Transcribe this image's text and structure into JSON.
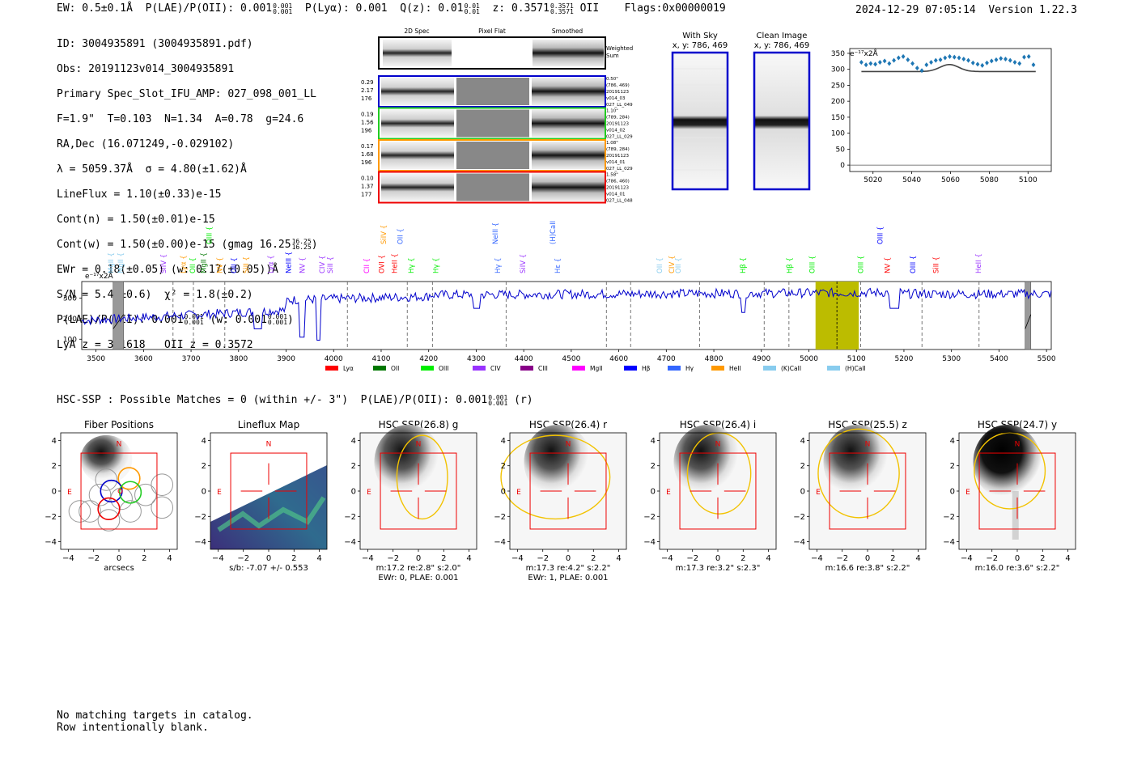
{
  "header": {
    "ew_label": "EW: 0.5±0.1Å",
    "plae_label": "P(LAE)/P(OII): 0.001",
    "plae_hi": "0.001",
    "plae_lo": "0.001",
    "plya_label": "P(Lyα): 0.001",
    "qz_label": "Q(z): 0.01",
    "qz_hi": "0.01",
    "qz_lo": "0.01",
    "z_label": "z: 0.3571",
    "z_hi": "0.3571",
    "z_lo": "0.3571",
    "z_line": "OII",
    "flags": "Flags:0x00000019",
    "timestamp": "2024-12-29 07:05:14  Version 1.22.3"
  },
  "info": {
    "id": "ID: 3004935891 (3004935891.pdf)",
    "obs": "Obs: 20191123v014_3004935891",
    "primary": "Primary Spec_Slot_IFU_AMP: 027_098_001_LL",
    "fparams": "F=1.9\"  T=0.103  N=1.34  A=0.78  g=24.6",
    "radec": "RA,Dec (16.071249,-0.029102)",
    "lambda": "λ = 5059.37Å  σ = 4.80(±1.62)Å",
    "lineflux": "LineFlux = 1.10(±0.33)e-15",
    "contn": "Cont(n) = 1.50(±0.01)e-15",
    "contw": "Cont(w) = 1.50(±0.00)e-15 (gmag 16.25",
    "contw_hi": "16.25",
    "contw_lo": "16.25",
    "ewr": "EWr = 0.18(±0.05) (w: 0.17(±0.05))Å",
    "sn": "S/N = 5.4(±0.6)  χ² = 1.8(±0.2)",
    "plae": "P(LAE)/P(OII): 0.001",
    "plae_hi": "0.001",
    "plae_lo": "0.001",
    "plae_w": "(w: 0.001",
    "plae_w_hi": "0.001",
    "plae_w_lo": "0.001",
    "lya_z": "LyA z = 3.1618   OII z = 0.3572"
  },
  "cutouts": {
    "col_titles": [
      "2D Spec",
      "Pixel Flat",
      "Smoothed"
    ],
    "weighted_sum_label": "Weighted\nSum",
    "rows": [
      {
        "color": "#0000cc",
        "left": [
          "0.29",
          "2.17",
          "176"
        ],
        "right": [
          "0.50\"",
          "(786, 469)",
          "20191123",
          "v014_03",
          "027_LL_049"
        ]
      },
      {
        "color": "#22cc22",
        "left": [
          "0.19",
          "1.56",
          "196"
        ],
        "right": [
          "1.10\"",
          "(789, 284)",
          "20191123",
          "v014_02",
          "027_LL_029"
        ]
      },
      {
        "color": "#ff9900",
        "left": [
          "0.17",
          "1.68",
          "196"
        ],
        "right": [
          "1.08\"",
          "(789, 284)",
          "20191123",
          "v014_01",
          "027_LL_029"
        ]
      },
      {
        "color": "#ee0000",
        "left": [
          "0.10",
          "1.37",
          "177"
        ],
        "right": [
          "1.58\"",
          "(786, 460)",
          "20191123",
          "v014_01",
          "027_LL_048"
        ]
      }
    ]
  },
  "sky_panels": {
    "with_sky": "With Sky",
    "with_sky_xy": "x, y: 786, 469",
    "clean": "Clean Image",
    "clean_xy": "x, y: 786, 469"
  },
  "zoom_chart": {
    "unit_label": "e⁻¹⁷x2Å",
    "yticks": [
      "350",
      "300",
      "250",
      "200",
      "150",
      "100",
      "50",
      "0"
    ],
    "xticks": [
      "5020",
      "5040",
      "5060",
      "5080",
      "5100"
    ]
  },
  "spectrum": {
    "unit_label": "e⁻¹⁷x2Å",
    "yticks": [
      "300",
      "200",
      "100"
    ],
    "xticks": [
      "3500",
      "3600",
      "3700",
      "3800",
      "3900",
      "4000",
      "4100",
      "4200",
      "4300",
      "4400",
      "4500",
      "4600",
      "4700",
      "4800",
      "4900",
      "5000",
      "5100",
      "5200",
      "5300",
      "5400",
      "5500"
    ],
    "legend": [
      {
        "label": "Lyα",
        "color": "#ff0000"
      },
      {
        "label": "OII",
        "color": "#007700"
      },
      {
        "label": "OIII",
        "color": "#00ee00"
      },
      {
        "label": "CIV",
        "color": "#9933ff"
      },
      {
        "label": "CIII",
        "color": "#880088"
      },
      {
        "label": "MgII",
        "color": "#ff00ff"
      },
      {
        "label": "Hβ",
        "color": "#0000ff"
      },
      {
        "label": "Hγ",
        "color": "#3366ff"
      },
      {
        "label": "HeII",
        "color": "#ff9900"
      },
      {
        "label": "(K)CaII",
        "color": "#88ccee"
      },
      {
        "label": "(H)CaII",
        "color": "#88ccee"
      }
    ],
    "line_labels": [
      {
        "x": 3531,
        "text": "MgII",
        "color": "#88ccee",
        "row": 1
      },
      {
        "x": 3552,
        "text": "MgII",
        "color": "#88ccee",
        "row": 1
      },
      {
        "x": 3642,
        "text": "SiIV",
        "color": "#9933ff",
        "row": 1
      },
      {
        "x": 3684,
        "text": "Lyα",
        "color": "#ff9900",
        "row": 1
      },
      {
        "x": 3703,
        "text": "OII",
        "color": "#00ee00",
        "row": 1
      },
      {
        "x": 3726,
        "text": "MgII",
        "color": "#007700",
        "row": 1
      },
      {
        "x": 3738,
        "text": "OIII",
        "color": "#00ee00",
        "row": 0
      },
      {
        "x": 3760,
        "text": "NV",
        "color": "#ff9900",
        "row": 1
      },
      {
        "x": 3790,
        "text": "OII",
        "color": "#0000ff",
        "row": 1
      },
      {
        "x": 3816,
        "text": "SiII",
        "color": "#ff9900",
        "row": 1
      },
      {
        "x": 3868,
        "text": "Lyα",
        "color": "#9933ff",
        "row": 1
      },
      {
        "x": 3905,
        "text": "NeIII",
        "color": "#0000ff",
        "row": 1
      },
      {
        "x": 3934,
        "text": "NV",
        "color": "#9933ff",
        "row": 1
      },
      {
        "x": 3976,
        "text": "CIV",
        "color": "#9933ff",
        "row": 1
      },
      {
        "x": 3993,
        "text": "SiII",
        "color": "#9933ff",
        "row": 1
      },
      {
        "x": 4069,
        "text": "CII",
        "color": "#ff00ff",
        "row": 1
      },
      {
        "x": 4101,
        "text": "OVI",
        "color": "#ff0000",
        "row": 1
      },
      {
        "x": 4105,
        "text": "SiIV",
        "color": "#ff9900",
        "row": 0
      },
      {
        "x": 4128,
        "text": "HeII",
        "color": "#ff0000",
        "row": 1
      },
      {
        "x": 4140,
        "text": "OII",
        "color": "#3366ff",
        "row": 0
      },
      {
        "x": 4163,
        "text": "Hγ",
        "color": "#00ee00",
        "row": 1
      },
      {
        "x": 4215,
        "text": "Hγ",
        "color": "#00ee00",
        "row": 1
      },
      {
        "x": 4340,
        "text": "NeIII",
        "color": "#3366ff",
        "row": 0
      },
      {
        "x": 4345,
        "text": "Hγ",
        "color": "#3366ff",
        "row": 1
      },
      {
        "x": 4398,
        "text": "SiIV",
        "color": "#9933ff",
        "row": 1
      },
      {
        "x": 4461,
        "text": "(H)CaII",
        "color": "#3366ff",
        "row": 0
      },
      {
        "x": 4471,
        "text": "Hε",
        "color": "#3366ff",
        "row": 1
      },
      {
        "x": 4686,
        "text": "OII",
        "color": "#88ccee",
        "row": 1
      },
      {
        "x": 4711,
        "text": "CIV",
        "color": "#ff9900",
        "row": 1
      },
      {
        "x": 4725,
        "text": "OII",
        "color": "#88ccee",
        "row": 1
      },
      {
        "x": 4861,
        "text": "Hβ",
        "color": "#00ee00",
        "row": 1
      },
      {
        "x": 4959,
        "text": "Hβ",
        "color": "#00ee00",
        "row": 1
      },
      {
        "x": 5007,
        "text": "OIII",
        "color": "#00ee00",
        "row": 1
      },
      {
        "x": 5109,
        "text": "OIII",
        "color": "#00ee00",
        "row": 1
      },
      {
        "x": 5150,
        "text": "OIII",
        "color": "#0000ff",
        "row": 0
      },
      {
        "x": 5165,
        "text": "NV",
        "color": "#ff0000",
        "row": 1
      },
      {
        "x": 5219,
        "text": "OIII",
        "color": "#0000ff",
        "row": 1
      },
      {
        "x": 5267,
        "text": "SiII",
        "color": "#ff0000",
        "row": 1
      },
      {
        "x": 5357,
        "text": "HeII",
        "color": "#9933ff",
        "row": 1
      }
    ]
  },
  "hsc": {
    "line": "HSC-SSP : Possible Matches = 0 (within +/- 3\")  P(LAE)/P(OII): 0.001",
    "hi": "0.001",
    "lo": "0.001",
    "suffix": "(r)"
  },
  "panels": [
    {
      "title": "Fiber Positions",
      "xlabel": "arcsecs",
      "xlabel2": ""
    },
    {
      "title": "Lineflux Map",
      "xlabel": "s/b: -7.07 +/- 0.553",
      "xlabel2": ""
    },
    {
      "title": "HSC SSP(26.8) g",
      "xlabel": "m:17.2  re:2.8\"  s:2.0\"",
      "xlabel2": "EWr: 0, PLAE: 0.001"
    },
    {
      "title": "HSC SSP(26.4) r",
      "xlabel": "m:17.3  re:4.2\"  s:2.2\"",
      "xlabel2": "EWr: 1, PLAE: 0.001"
    },
    {
      "title": "HSC SSP(26.4) i",
      "xlabel": "m:17.3  re:3.2\"  s:2.3\"",
      "xlabel2": ""
    },
    {
      "title": "HSC SSP(25.5) z",
      "xlabel": "m:16.6  re:3.8\"  s:2.2\"",
      "xlabel2": ""
    },
    {
      "title": "HSC SSP(24.7) y",
      "xlabel": "m:16.0  re:3.6\"  s:2.2\"",
      "xlabel2": ""
    }
  ],
  "panel_ticks": {
    "x": [
      "−4",
      "−2",
      "0",
      "2",
      "4"
    ],
    "y": [
      "4",
      "2",
      "0",
      "−2",
      "−4"
    ],
    "north": "N",
    "east": "E"
  },
  "footer": {
    "line1": "No matching targets in catalog.",
    "line2": "Row intentionally blank."
  }
}
